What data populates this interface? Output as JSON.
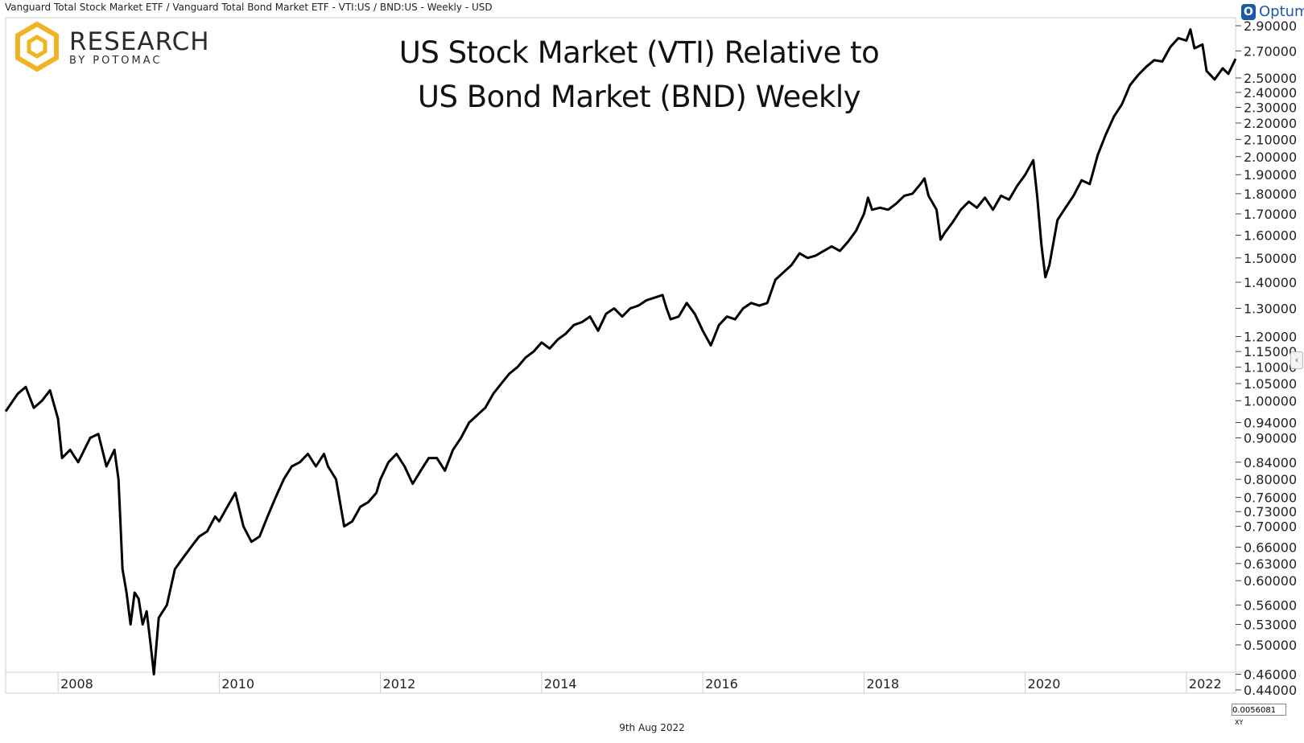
{
  "header": {
    "caption": "Vanguard Total Stock Market ETF / Vanguard Total Bond Market ETF - VTI:US / BND:US - Weekly - USD",
    "branding": "Optuma"
  },
  "logo": {
    "main": "RESEARCH",
    "sub": "BY POTOMAC",
    "color": "#F0B323"
  },
  "footer": {
    "date": "9th Aug 2022",
    "scale_value": "0.0056081",
    "scale_suffix": "XY"
  },
  "chart_data": {
    "type": "line",
    "title_lines": [
      "US Stock Market (VTI) Relative to",
      "US Bond Market (BND) Weekly"
    ],
    "xlabel": "",
    "ylabel": "",
    "y_scale": "log",
    "ylim": [
      0.44,
      2.9
    ],
    "xlim": [
      2007.35,
      2022.61
    ],
    "x_ticks": [
      "2008",
      "2010",
      "2012",
      "2014",
      "2016",
      "2018",
      "2020",
      "2022"
    ],
    "y_ticks": [
      "2.90000",
      "2.70000",
      "2.50000",
      "2.40000",
      "2.30000",
      "2.20000",
      "2.10000",
      "2.00000",
      "1.90000",
      "1.80000",
      "1.70000",
      "1.60000",
      "1.50000",
      "1.40000",
      "1.30000",
      "1.20000",
      "1.15000",
      "1.10000",
      "1.05000",
      "1.00000",
      "0.94000",
      "0.90000",
      "0.84000",
      "0.80000",
      "0.76000",
      "0.73000",
      "0.70000",
      "0.66000",
      "0.63000",
      "0.60000",
      "0.56000",
      "0.53000",
      "0.50000",
      "0.46000",
      "0.44000"
    ],
    "line_color": "#000000",
    "series": [
      {
        "values": [
          [
            2007.35,
            0.97
          ],
          [
            2007.5,
            1.02
          ],
          [
            2007.6,
            1.04
          ],
          [
            2007.7,
            0.98
          ],
          [
            2007.8,
            1.0
          ],
          [
            2007.9,
            1.03
          ],
          [
            2008.0,
            0.95
          ],
          [
            2008.05,
            0.85
          ],
          [
            2008.15,
            0.87
          ],
          [
            2008.25,
            0.84
          ],
          [
            2008.4,
            0.9
          ],
          [
            2008.5,
            0.91
          ],
          [
            2008.6,
            0.83
          ],
          [
            2008.7,
            0.87
          ],
          [
            2008.75,
            0.8
          ],
          [
            2008.8,
            0.62
          ],
          [
            2008.85,
            0.58
          ],
          [
            2008.9,
            0.53
          ],
          [
            2008.95,
            0.58
          ],
          [
            2009.0,
            0.57
          ],
          [
            2009.05,
            0.53
          ],
          [
            2009.1,
            0.55
          ],
          [
            2009.15,
            0.5
          ],
          [
            2009.19,
            0.46
          ],
          [
            2009.25,
            0.54
          ],
          [
            2009.35,
            0.56
          ],
          [
            2009.45,
            0.62
          ],
          [
            2009.55,
            0.64
          ],
          [
            2009.65,
            0.66
          ],
          [
            2009.75,
            0.68
          ],
          [
            2009.85,
            0.69
          ],
          [
            2009.95,
            0.72
          ],
          [
            2010.0,
            0.71
          ],
          [
            2010.1,
            0.74
          ],
          [
            2010.2,
            0.77
          ],
          [
            2010.3,
            0.7
          ],
          [
            2010.4,
            0.67
          ],
          [
            2010.5,
            0.68
          ],
          [
            2010.6,
            0.72
          ],
          [
            2010.7,
            0.76
          ],
          [
            2010.8,
            0.8
          ],
          [
            2010.9,
            0.83
          ],
          [
            2011.0,
            0.84
          ],
          [
            2011.1,
            0.86
          ],
          [
            2011.2,
            0.83
          ],
          [
            2011.3,
            0.86
          ],
          [
            2011.35,
            0.83
          ],
          [
            2011.45,
            0.8
          ],
          [
            2011.55,
            0.7
          ],
          [
            2011.65,
            0.71
          ],
          [
            2011.75,
            0.74
          ],
          [
            2011.85,
            0.75
          ],
          [
            2011.95,
            0.77
          ],
          [
            2012.0,
            0.8
          ],
          [
            2012.1,
            0.84
          ],
          [
            2012.2,
            0.86
          ],
          [
            2012.3,
            0.83
          ],
          [
            2012.4,
            0.79
          ],
          [
            2012.5,
            0.82
          ],
          [
            2012.6,
            0.85
          ],
          [
            2012.7,
            0.85
          ],
          [
            2012.8,
            0.82
          ],
          [
            2012.9,
            0.87
          ],
          [
            2013.0,
            0.9
          ],
          [
            2013.1,
            0.94
          ],
          [
            2013.2,
            0.96
          ],
          [
            2013.3,
            0.98
          ],
          [
            2013.4,
            1.02
          ],
          [
            2013.5,
            1.05
          ],
          [
            2013.6,
            1.08
          ],
          [
            2013.7,
            1.1
          ],
          [
            2013.8,
            1.13
          ],
          [
            2013.9,
            1.15
          ],
          [
            2014.0,
            1.18
          ],
          [
            2014.1,
            1.16
          ],
          [
            2014.2,
            1.19
          ],
          [
            2014.3,
            1.21
          ],
          [
            2014.4,
            1.24
          ],
          [
            2014.5,
            1.25
          ],
          [
            2014.6,
            1.27
          ],
          [
            2014.7,
            1.22
          ],
          [
            2014.8,
            1.28
          ],
          [
            2014.9,
            1.3
          ],
          [
            2015.0,
            1.27
          ],
          [
            2015.1,
            1.3
          ],
          [
            2015.2,
            1.31
          ],
          [
            2015.3,
            1.33
          ],
          [
            2015.4,
            1.34
          ],
          [
            2015.5,
            1.35
          ],
          [
            2015.55,
            1.3
          ],
          [
            2015.6,
            1.26
          ],
          [
            2015.7,
            1.27
          ],
          [
            2015.8,
            1.32
          ],
          [
            2015.9,
            1.28
          ],
          [
            2016.0,
            1.22
          ],
          [
            2016.1,
            1.17
          ],
          [
            2016.2,
            1.24
          ],
          [
            2016.3,
            1.27
          ],
          [
            2016.4,
            1.26
          ],
          [
            2016.5,
            1.3
          ],
          [
            2016.6,
            1.32
          ],
          [
            2016.7,
            1.31
          ],
          [
            2016.8,
            1.32
          ],
          [
            2016.9,
            1.41
          ],
          [
            2017.0,
            1.44
          ],
          [
            2017.1,
            1.47
          ],
          [
            2017.2,
            1.52
          ],
          [
            2017.3,
            1.5
          ],
          [
            2017.4,
            1.51
          ],
          [
            2017.5,
            1.53
          ],
          [
            2017.6,
            1.55
          ],
          [
            2017.7,
            1.53
          ],
          [
            2017.8,
            1.57
          ],
          [
            2017.9,
            1.62
          ],
          [
            2018.0,
            1.7
          ],
          [
            2018.05,
            1.78
          ],
          [
            2018.1,
            1.72
          ],
          [
            2018.2,
            1.73
          ],
          [
            2018.3,
            1.72
          ],
          [
            2018.4,
            1.75
          ],
          [
            2018.5,
            1.79
          ],
          [
            2018.6,
            1.8
          ],
          [
            2018.7,
            1.85
          ],
          [
            2018.75,
            1.88
          ],
          [
            2018.8,
            1.79
          ],
          [
            2018.9,
            1.72
          ],
          [
            2018.95,
            1.58
          ],
          [
            2019.0,
            1.61
          ],
          [
            2019.1,
            1.66
          ],
          [
            2019.2,
            1.72
          ],
          [
            2019.3,
            1.76
          ],
          [
            2019.4,
            1.73
          ],
          [
            2019.5,
            1.78
          ],
          [
            2019.6,
            1.72
          ],
          [
            2019.7,
            1.79
          ],
          [
            2019.8,
            1.77
          ],
          [
            2019.9,
            1.84
          ],
          [
            2020.0,
            1.9
          ],
          [
            2020.1,
            1.98
          ],
          [
            2020.15,
            1.78
          ],
          [
            2020.2,
            1.56
          ],
          [
            2020.25,
            1.42
          ],
          [
            2020.3,
            1.47
          ],
          [
            2020.4,
            1.67
          ],
          [
            2020.5,
            1.73
          ],
          [
            2020.6,
            1.79
          ],
          [
            2020.7,
            1.87
          ],
          [
            2020.8,
            1.85
          ],
          [
            2020.9,
            2.01
          ],
          [
            2021.0,
            2.13
          ],
          [
            2021.1,
            2.24
          ],
          [
            2021.2,
            2.32
          ],
          [
            2021.3,
            2.45
          ],
          [
            2021.4,
            2.52
          ],
          [
            2021.5,
            2.58
          ],
          [
            2021.6,
            2.63
          ],
          [
            2021.7,
            2.62
          ],
          [
            2021.8,
            2.73
          ],
          [
            2021.9,
            2.8
          ],
          [
            2022.0,
            2.78
          ],
          [
            2022.05,
            2.87
          ],
          [
            2022.1,
            2.72
          ],
          [
            2022.2,
            2.75
          ],
          [
            2022.25,
            2.55
          ],
          [
            2022.35,
            2.49
          ],
          [
            2022.45,
            2.57
          ],
          [
            2022.52,
            2.53
          ],
          [
            2022.61,
            2.64
          ]
        ]
      }
    ]
  }
}
